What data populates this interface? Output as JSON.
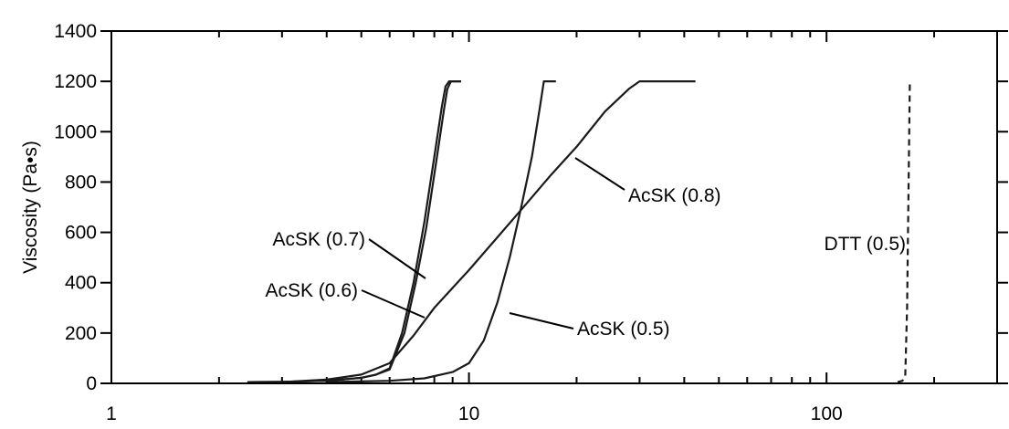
{
  "chart_data": {
    "type": "line",
    "title": "",
    "xlabel": "",
    "ylabel": "Viscosity (Pa•s)",
    "xscale": "log",
    "xlim": [
      1,
      300
    ],
    "ylim": [
      0,
      1400
    ],
    "grid": false,
    "legend": "none",
    "x_tick_labels": [
      {
        "value": 1,
        "label": "1"
      },
      {
        "value": 10,
        "label": "10"
      },
      {
        "value": 100,
        "label": "100"
      }
    ],
    "y_ticks": [
      0,
      200,
      400,
      600,
      800,
      1000,
      1200,
      1400
    ],
    "series": [
      {
        "name": "AcSK (0.7)",
        "style": "solid",
        "points": [
          [
            2.4,
            5
          ],
          [
            3,
            6
          ],
          [
            4,
            10
          ],
          [
            5,
            22
          ],
          [
            5.5,
            35
          ],
          [
            6,
            60
          ],
          [
            6.5,
            200
          ],
          [
            7,
            400
          ],
          [
            7.5,
            640
          ],
          [
            8,
            900
          ],
          [
            8.4,
            1100
          ],
          [
            8.6,
            1180
          ],
          [
            8.8,
            1200
          ],
          [
            9.5,
            1200
          ]
        ]
      },
      {
        "name": "AcSK (0.6)",
        "style": "solid",
        "points": [
          [
            2.4,
            5
          ],
          [
            3,
            6
          ],
          [
            4,
            10
          ],
          [
            5,
            22
          ],
          [
            5.5,
            35
          ],
          [
            6,
            55
          ],
          [
            6.6,
            200
          ],
          [
            7.1,
            400
          ],
          [
            7.6,
            620
          ],
          [
            8.1,
            880
          ],
          [
            8.5,
            1080
          ],
          [
            8.7,
            1170
          ],
          [
            8.9,
            1200
          ],
          [
            9.5,
            1200
          ]
        ]
      },
      {
        "name": "AcSK (0.8)",
        "style": "solid",
        "points": [
          [
            3,
            5
          ],
          [
            4,
            15
          ],
          [
            5,
            35
          ],
          [
            6,
            80
          ],
          [
            7,
            190
          ],
          [
            8,
            300
          ],
          [
            10,
            450
          ],
          [
            12,
            580
          ],
          [
            14,
            690
          ],
          [
            17,
            830
          ],
          [
            20,
            940
          ],
          [
            24,
            1080
          ],
          [
            28,
            1170
          ],
          [
            30,
            1200
          ],
          [
            43,
            1200
          ]
        ]
      },
      {
        "name": "AcSK (0.5)",
        "style": "solid",
        "points": [
          [
            4,
            5
          ],
          [
            6,
            10
          ],
          [
            7.5,
            20
          ],
          [
            9,
            45
          ],
          [
            10,
            80
          ],
          [
            11,
            170
          ],
          [
            12,
            320
          ],
          [
            13,
            500
          ],
          [
            14,
            700
          ],
          [
            15,
            900
          ],
          [
            15.8,
            1100
          ],
          [
            16.2,
            1200
          ],
          [
            17.5,
            1200
          ]
        ]
      },
      {
        "name": "DTT (0.5)",
        "style": "dashed",
        "points": [
          [
            158,
            5
          ],
          [
            163,
            10
          ],
          [
            166,
            30
          ],
          [
            168,
            300
          ],
          [
            169,
            600
          ],
          [
            170,
            900
          ],
          [
            171,
            1200
          ]
        ]
      }
    ],
    "annotations": [
      {
        "text": "AcSK (0.7)",
        "series": "AcSK (0.7)"
      },
      {
        "text": "AcSK (0.6)",
        "series": "AcSK (0.6)"
      },
      {
        "text": "AcSK (0.8)",
        "series": "AcSK (0.8)"
      },
      {
        "text": "AcSK (0.5)",
        "series": "AcSK (0.5)"
      },
      {
        "text": "DTT (0.5)",
        "series": "DTT (0.5)"
      }
    ]
  }
}
